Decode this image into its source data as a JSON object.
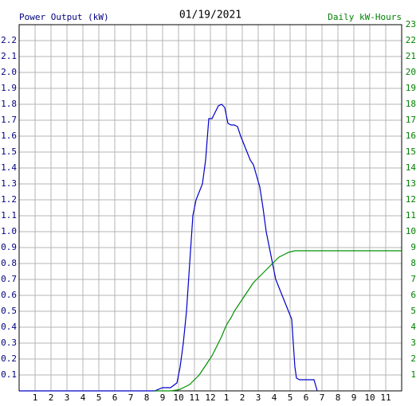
{
  "chart_data": {
    "type": "line",
    "title": "01/19/2021",
    "y_label": "Power Output (kW)",
    "y2_label": "Daily kW-Hours",
    "x": [
      0,
      8.5,
      9.0,
      9.5,
      9.9,
      10.1,
      10.3,
      10.5,
      10.7,
      10.9,
      11.1,
      11.3,
      11.5,
      11.7,
      11.9,
      12.1,
      12.3,
      12.5,
      12.7,
      12.9,
      13.1,
      13.3,
      13.5,
      13.7,
      13.9,
      14.1,
      14.3,
      14.5,
      14.7,
      14.9,
      15.1,
      15.3,
      15.5,
      15.7,
      15.9,
      16.1,
      16.3,
      16.5,
      16.7,
      16.9,
      17.1,
      17.3,
      17.4,
      17.6,
      18.0,
      18.5,
      18.7,
      19.0,
      20,
      24
    ],
    "series": [
      {
        "name": "Power Output (kW)",
        "color": "#0000c8",
        "axis": "y",
        "values": [
          0,
          0,
          0.02,
          0.02,
          0.05,
          0.15,
          0.3,
          0.5,
          0.8,
          1.1,
          1.2,
          1.25,
          1.3,
          1.45,
          1.71,
          1.71,
          1.75,
          1.79,
          1.8,
          1.78,
          1.68,
          1.67,
          1.67,
          1.66,
          1.6,
          1.55,
          1.5,
          1.45,
          1.42,
          1.35,
          1.28,
          1.15,
          1.0,
          0.9,
          0.8,
          0.7,
          0.65,
          0.6,
          0.55,
          0.5,
          0.45,
          0.15,
          0.08,
          0.07,
          0.07,
          0.07,
          0,
          null,
          null,
          null
        ]
      },
      {
        "name": "Daily kW-Hours",
        "color": "#009000",
        "axis": "y2",
        "values": [
          null,
          0,
          0,
          0,
          0.05,
          0.1,
          0.2,
          0.3,
          0.4,
          0.6,
          0.8,
          1.0,
          1.3,
          1.6,
          1.9,
          2.2,
          2.6,
          3.0,
          3.4,
          3.9,
          4.3,
          4.6,
          5.0,
          5.3,
          5.6,
          5.9,
          6.2,
          6.5,
          6.8,
          7.0,
          7.2,
          7.4,
          7.6,
          7.8,
          8.0,
          8.2,
          8.4,
          8.5,
          8.6,
          8.7,
          8.75,
          8.8,
          8.8,
          8.8,
          8.8,
          8.8,
          8.8,
          8.8,
          8.8,
          8.8
        ]
      }
    ],
    "xlim": [
      0,
      24
    ],
    "xticks": [
      1,
      2,
      3,
      4,
      5,
      6,
      7,
      8,
      9,
      10,
      11,
      12,
      {
        "value": 13,
        "label": "1"
      },
      {
        "value": 14,
        "label": "2"
      },
      {
        "value": 15,
        "label": "3"
      },
      {
        "value": 16,
        "label": "4"
      },
      {
        "value": 17,
        "label": "5"
      },
      {
        "value": 18,
        "label": "6"
      },
      {
        "value": 19,
        "label": "7"
      },
      {
        "value": 20,
        "label": "8"
      },
      {
        "value": 21,
        "label": "9"
      },
      {
        "value": 22,
        "label": "10"
      },
      {
        "value": 23,
        "label": "11"
      }
    ],
    "ylim": [
      0,
      2.3
    ],
    "yticks": [
      0.1,
      0.2,
      0.3,
      0.4,
      0.5,
      0.6,
      0.7,
      0.8,
      0.9,
      {
        "value": 1,
        "label": "1.0"
      },
      1.1,
      1.2,
      1.3,
      1.4,
      1.5,
      1.6,
      1.7,
      1.8,
      1.9,
      {
        "value": 2,
        "label": "2.0"
      },
      2.1,
      2.2
    ],
    "y2lim": [
      0,
      23
    ],
    "y2ticks": [
      1,
      2,
      3,
      4,
      5,
      6,
      7,
      8,
      9,
      10,
      11,
      12,
      13,
      14,
      15,
      16,
      17,
      18,
      19,
      20,
      21,
      22,
      23
    ],
    "grid": true,
    "y_label_color": "#000080",
    "y2_label_color": "#008000"
  }
}
